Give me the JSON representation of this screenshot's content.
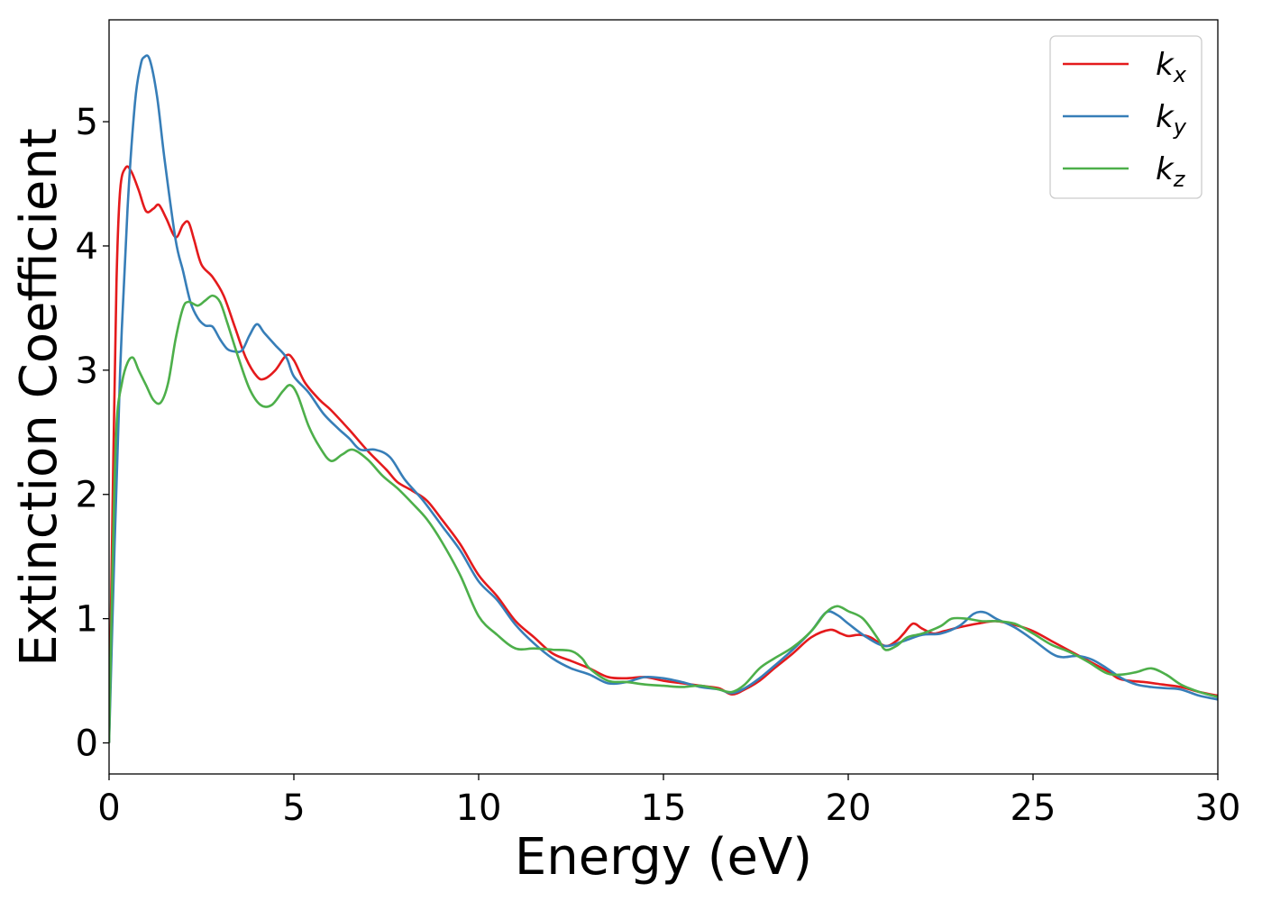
{
  "chart_data": {
    "type": "line",
    "title": "",
    "xlabel": "Energy (eV)",
    "ylabel": "Extinction Coefficient",
    "xlim": [
      0,
      30
    ],
    "ylim": [
      -0.25,
      5.82
    ],
    "xticks": [
      0,
      5,
      10,
      15,
      20,
      25,
      30
    ],
    "yticks": [
      0,
      1,
      2,
      3,
      4,
      5
    ],
    "grid": false,
    "legend_position": "top-right",
    "series": [
      {
        "name": "k_x",
        "color": "#e41a1c",
        "points": [
          [
            0,
            0
          ],
          [
            0.1,
            2.0
          ],
          [
            0.2,
            3.7
          ],
          [
            0.3,
            4.45
          ],
          [
            0.45,
            4.63
          ],
          [
            0.6,
            4.6
          ],
          [
            0.8,
            4.45
          ],
          [
            1.0,
            4.28
          ],
          [
            1.2,
            4.3
          ],
          [
            1.35,
            4.33
          ],
          [
            1.55,
            4.22
          ],
          [
            1.8,
            4.07
          ],
          [
            2.0,
            4.17
          ],
          [
            2.15,
            4.19
          ],
          [
            2.3,
            4.05
          ],
          [
            2.5,
            3.85
          ],
          [
            2.8,
            3.75
          ],
          [
            3.1,
            3.6
          ],
          [
            3.4,
            3.35
          ],
          [
            3.7,
            3.1
          ],
          [
            4.0,
            2.95
          ],
          [
            4.2,
            2.93
          ],
          [
            4.5,
            3.0
          ],
          [
            4.8,
            3.12
          ],
          [
            5.0,
            3.08
          ],
          [
            5.3,
            2.9
          ],
          [
            5.7,
            2.76
          ],
          [
            6.0,
            2.68
          ],
          [
            6.5,
            2.52
          ],
          [
            7.0,
            2.35
          ],
          [
            7.5,
            2.2
          ],
          [
            7.8,
            2.1
          ],
          [
            8.2,
            2.03
          ],
          [
            8.6,
            1.95
          ],
          [
            9.0,
            1.8
          ],
          [
            9.5,
            1.6
          ],
          [
            10.0,
            1.35
          ],
          [
            10.5,
            1.18
          ],
          [
            11.0,
            0.98
          ],
          [
            11.5,
            0.85
          ],
          [
            12.0,
            0.72
          ],
          [
            12.5,
            0.66
          ],
          [
            13.0,
            0.6
          ],
          [
            13.5,
            0.53
          ],
          [
            14.0,
            0.52
          ],
          [
            14.5,
            0.53
          ],
          [
            15.0,
            0.5
          ],
          [
            15.5,
            0.48
          ],
          [
            16.0,
            0.46
          ],
          [
            16.5,
            0.44
          ],
          [
            16.85,
            0.39
          ],
          [
            17.2,
            0.43
          ],
          [
            17.6,
            0.5
          ],
          [
            18.0,
            0.6
          ],
          [
            18.5,
            0.72
          ],
          [
            19.0,
            0.85
          ],
          [
            19.5,
            0.91
          ],
          [
            19.8,
            0.88
          ],
          [
            20.0,
            0.86
          ],
          [
            20.3,
            0.87
          ],
          [
            20.6,
            0.85
          ],
          [
            21.0,
            0.78
          ],
          [
            21.3,
            0.82
          ],
          [
            21.5,
            0.88
          ],
          [
            21.75,
            0.96
          ],
          [
            22.0,
            0.92
          ],
          [
            22.3,
            0.88
          ],
          [
            22.6,
            0.9
          ],
          [
            23.0,
            0.93
          ],
          [
            23.5,
            0.96
          ],
          [
            24.0,
            0.98
          ],
          [
            24.5,
            0.95
          ],
          [
            25.0,
            0.9
          ],
          [
            25.5,
            0.82
          ],
          [
            26.0,
            0.74
          ],
          [
            26.5,
            0.66
          ],
          [
            27.0,
            0.58
          ],
          [
            27.3,
            0.52
          ],
          [
            27.6,
            0.5
          ],
          [
            28.0,
            0.49
          ],
          [
            28.5,
            0.47
          ],
          [
            29.0,
            0.45
          ],
          [
            29.5,
            0.41
          ],
          [
            30.0,
            0.38
          ]
        ]
      },
      {
        "name": "k_y",
        "color": "#377eb8",
        "points": [
          [
            0,
            0
          ],
          [
            0.15,
            1.6
          ],
          [
            0.3,
            3.0
          ],
          [
            0.5,
            4.3
          ],
          [
            0.7,
            5.15
          ],
          [
            0.85,
            5.45
          ],
          [
            0.95,
            5.52
          ],
          [
            1.1,
            5.5
          ],
          [
            1.3,
            5.2
          ],
          [
            1.5,
            4.7
          ],
          [
            1.8,
            4.05
          ],
          [
            2.0,
            3.8
          ],
          [
            2.2,
            3.55
          ],
          [
            2.4,
            3.42
          ],
          [
            2.6,
            3.36
          ],
          [
            2.8,
            3.35
          ],
          [
            3.0,
            3.25
          ],
          [
            3.2,
            3.17
          ],
          [
            3.4,
            3.15
          ],
          [
            3.6,
            3.16
          ],
          [
            3.8,
            3.28
          ],
          [
            4.0,
            3.37
          ],
          [
            4.2,
            3.3
          ],
          [
            4.5,
            3.2
          ],
          [
            4.8,
            3.1
          ],
          [
            5.0,
            2.95
          ],
          [
            5.4,
            2.82
          ],
          [
            5.8,
            2.65
          ],
          [
            6.2,
            2.53
          ],
          [
            6.5,
            2.45
          ],
          [
            6.8,
            2.36
          ],
          [
            7.2,
            2.36
          ],
          [
            7.6,
            2.3
          ],
          [
            8.0,
            2.12
          ],
          [
            8.5,
            1.95
          ],
          [
            9.0,
            1.75
          ],
          [
            9.5,
            1.55
          ],
          [
            10.0,
            1.3
          ],
          [
            10.5,
            1.15
          ],
          [
            11.0,
            0.95
          ],
          [
            11.5,
            0.8
          ],
          [
            12.0,
            0.68
          ],
          [
            12.5,
            0.6
          ],
          [
            13.0,
            0.55
          ],
          [
            13.5,
            0.48
          ],
          [
            14.0,
            0.49
          ],
          [
            14.5,
            0.53
          ],
          [
            15.0,
            0.52
          ],
          [
            15.5,
            0.49
          ],
          [
            16.0,
            0.45
          ],
          [
            16.5,
            0.43
          ],
          [
            16.85,
            0.4
          ],
          [
            17.2,
            0.44
          ],
          [
            17.6,
            0.52
          ],
          [
            18.0,
            0.62
          ],
          [
            18.5,
            0.75
          ],
          [
            19.0,
            0.9
          ],
          [
            19.4,
            1.05
          ],
          [
            19.7,
            1.03
          ],
          [
            20.0,
            0.96
          ],
          [
            20.5,
            0.85
          ],
          [
            21.0,
            0.78
          ],
          [
            21.5,
            0.82
          ],
          [
            22.0,
            0.87
          ],
          [
            22.5,
            0.88
          ],
          [
            23.0,
            0.94
          ],
          [
            23.4,
            1.04
          ],
          [
            23.7,
            1.05
          ],
          [
            24.0,
            1.0
          ],
          [
            24.5,
            0.93
          ],
          [
            25.0,
            0.83
          ],
          [
            25.5,
            0.72
          ],
          [
            25.8,
            0.69
          ],
          [
            26.2,
            0.7
          ],
          [
            26.6,
            0.67
          ],
          [
            27.0,
            0.6
          ],
          [
            27.4,
            0.52
          ],
          [
            27.8,
            0.47
          ],
          [
            28.2,
            0.45
          ],
          [
            28.6,
            0.44
          ],
          [
            29.0,
            0.43
          ],
          [
            29.5,
            0.38
          ],
          [
            30.0,
            0.35
          ]
        ]
      },
      {
        "name": "k_z",
        "color": "#4daf4a",
        "points": [
          [
            0,
            0
          ],
          [
            0.1,
            1.5
          ],
          [
            0.2,
            2.55
          ],
          [
            0.35,
            2.9
          ],
          [
            0.5,
            3.06
          ],
          [
            0.65,
            3.1
          ],
          [
            0.8,
            3.0
          ],
          [
            1.0,
            2.88
          ],
          [
            1.2,
            2.76
          ],
          [
            1.4,
            2.74
          ],
          [
            1.6,
            2.9
          ],
          [
            1.8,
            3.25
          ],
          [
            2.0,
            3.5
          ],
          [
            2.15,
            3.55
          ],
          [
            2.4,
            3.52
          ],
          [
            2.6,
            3.56
          ],
          [
            2.8,
            3.6
          ],
          [
            3.0,
            3.55
          ],
          [
            3.2,
            3.38
          ],
          [
            3.5,
            3.1
          ],
          [
            3.8,
            2.85
          ],
          [
            4.1,
            2.72
          ],
          [
            4.4,
            2.72
          ],
          [
            4.7,
            2.83
          ],
          [
            4.9,
            2.88
          ],
          [
            5.1,
            2.8
          ],
          [
            5.4,
            2.55
          ],
          [
            5.7,
            2.38
          ],
          [
            6.0,
            2.27
          ],
          [
            6.3,
            2.32
          ],
          [
            6.6,
            2.36
          ],
          [
            7.0,
            2.28
          ],
          [
            7.4,
            2.15
          ],
          [
            7.8,
            2.05
          ],
          [
            8.2,
            1.93
          ],
          [
            8.6,
            1.8
          ],
          [
            9.0,
            1.62
          ],
          [
            9.5,
            1.35
          ],
          [
            10.0,
            1.02
          ],
          [
            10.5,
            0.87
          ],
          [
            11.0,
            0.76
          ],
          [
            11.5,
            0.76
          ],
          [
            12.0,
            0.75
          ],
          [
            12.5,
            0.74
          ],
          [
            12.8,
            0.68
          ],
          [
            13.0,
            0.6
          ],
          [
            13.5,
            0.5
          ],
          [
            14.0,
            0.49
          ],
          [
            14.5,
            0.47
          ],
          [
            15.0,
            0.46
          ],
          [
            15.5,
            0.45
          ],
          [
            16.0,
            0.46
          ],
          [
            16.5,
            0.43
          ],
          [
            16.85,
            0.41
          ],
          [
            17.2,
            0.47
          ],
          [
            17.6,
            0.6
          ],
          [
            18.0,
            0.68
          ],
          [
            18.5,
            0.77
          ],
          [
            19.0,
            0.9
          ],
          [
            19.4,
            1.05
          ],
          [
            19.7,
            1.1
          ],
          [
            20.0,
            1.06
          ],
          [
            20.4,
            1.0
          ],
          [
            20.8,
            0.84
          ],
          [
            21.0,
            0.75
          ],
          [
            21.3,
            0.78
          ],
          [
            21.6,
            0.85
          ],
          [
            22.0,
            0.88
          ],
          [
            22.5,
            0.94
          ],
          [
            22.8,
            1.0
          ],
          [
            23.2,
            1.0
          ],
          [
            23.6,
            0.98
          ],
          [
            24.0,
            0.98
          ],
          [
            24.5,
            0.96
          ],
          [
            25.0,
            0.88
          ],
          [
            25.5,
            0.79
          ],
          [
            26.0,
            0.73
          ],
          [
            26.5,
            0.65
          ],
          [
            27.0,
            0.56
          ],
          [
            27.4,
            0.55
          ],
          [
            27.8,
            0.57
          ],
          [
            28.2,
            0.6
          ],
          [
            28.6,
            0.55
          ],
          [
            29.0,
            0.47
          ],
          [
            29.5,
            0.41
          ],
          [
            30.0,
            0.37
          ]
        ]
      }
    ]
  }
}
